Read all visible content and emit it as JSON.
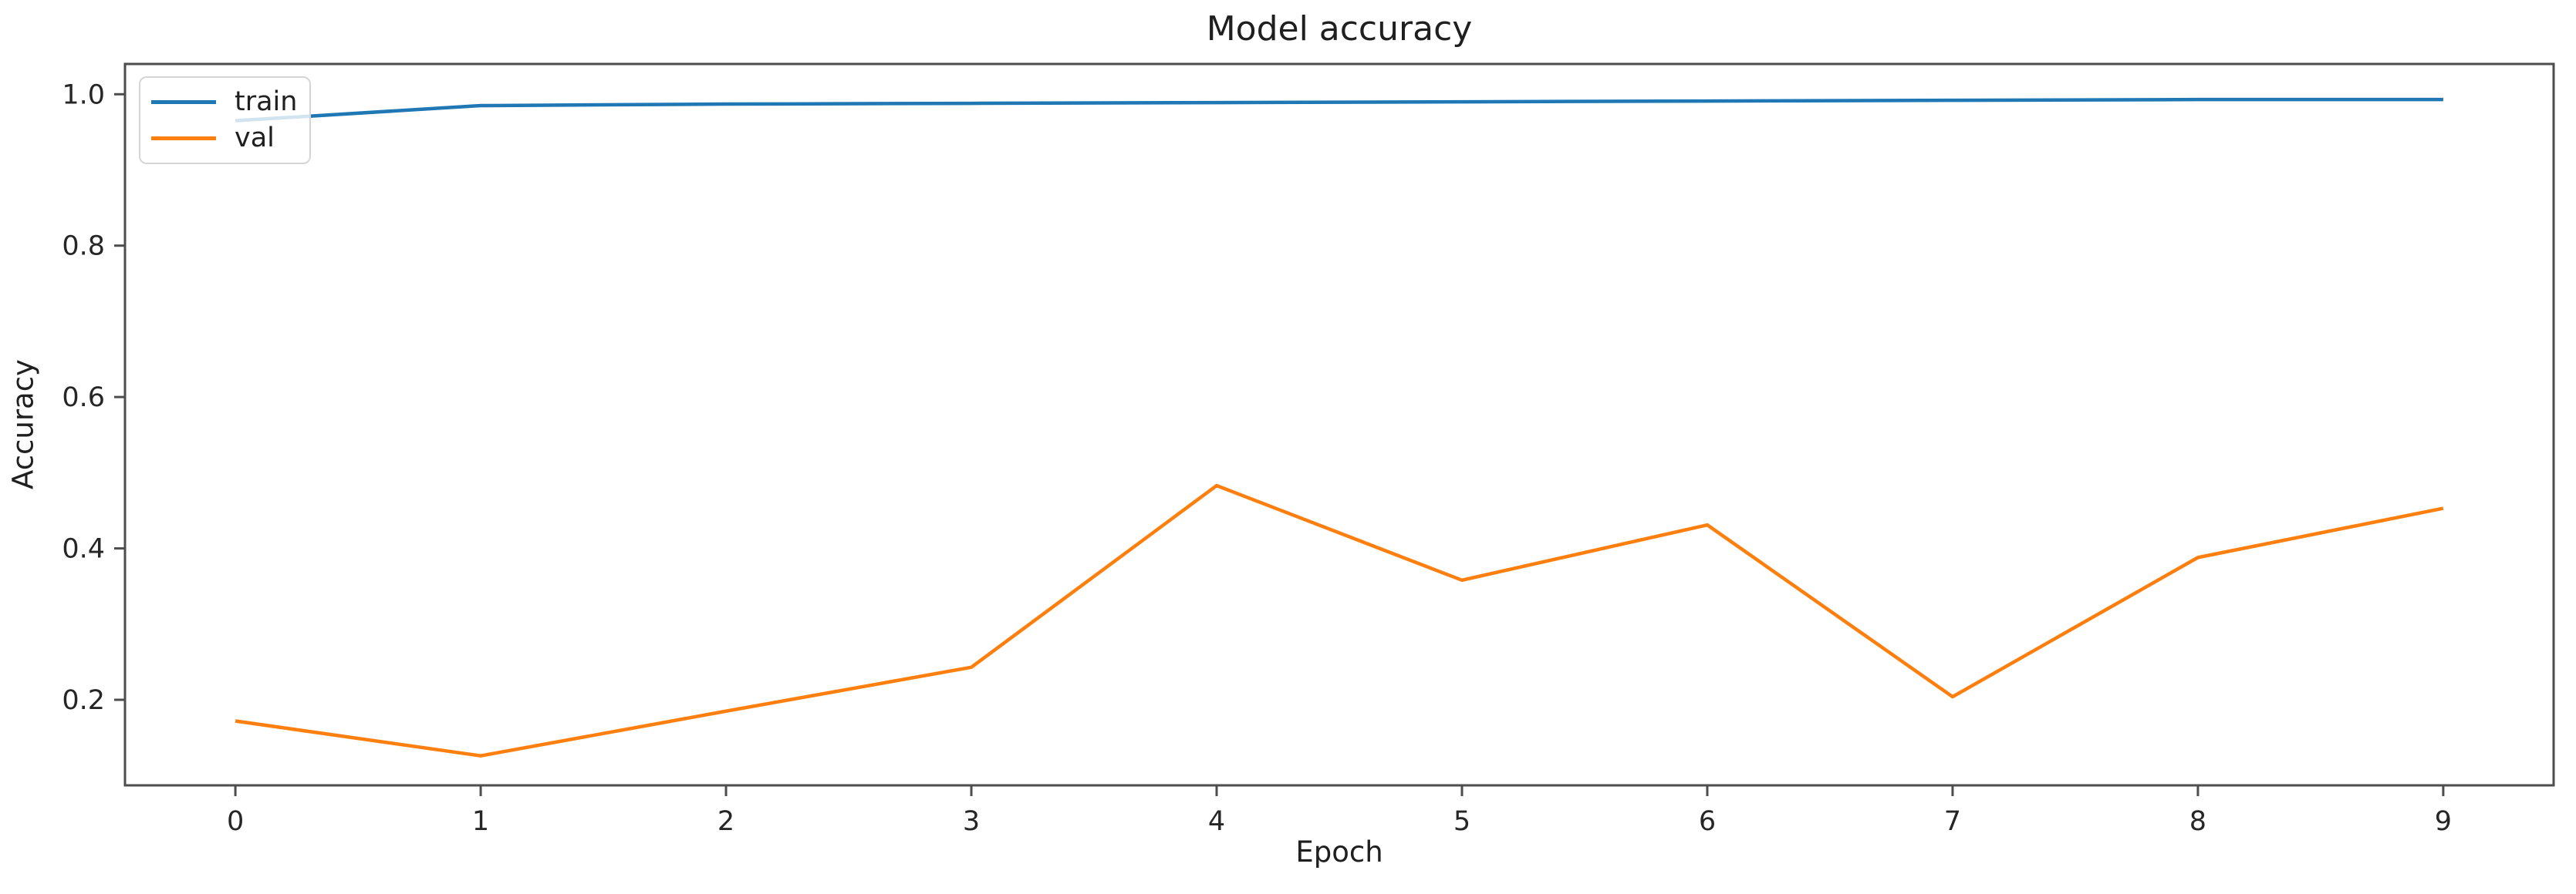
{
  "figure": {
    "background": "#ffffff",
    "text_color": "#1f1f1f",
    "axis_color": "#4d4d4d"
  },
  "chart_data": {
    "type": "line",
    "title": "Model accuracy",
    "xlabel": "Epoch",
    "ylabel": "Accuracy",
    "x": [
      0,
      1,
      2,
      3,
      4,
      5,
      6,
      7,
      8,
      9
    ],
    "series": [
      {
        "name": "train",
        "color": "#1f77b4",
        "values": [
          0.965,
          0.985,
          0.987,
          0.988,
          0.989,
          0.99,
          0.991,
          0.992,
          0.993,
          0.993
        ]
      },
      {
        "name": "val",
        "color": "#ff7f0e",
        "values": [
          0.172,
          0.126,
          0.185,
          0.243,
          0.483,
          0.358,
          0.431,
          0.204,
          0.388,
          0.453
        ]
      }
    ],
    "xticks": [
      "0",
      "1",
      "2",
      "3",
      "4",
      "5",
      "6",
      "7",
      "8",
      "9"
    ],
    "xtick_values": [
      0,
      1,
      2,
      3,
      4,
      5,
      6,
      7,
      8,
      9
    ],
    "yticks": [
      "0.2",
      "0.4",
      "0.6",
      "0.8",
      "1.0"
    ],
    "ytick_values": [
      0.2,
      0.4,
      0.6,
      0.8,
      1.0
    ],
    "xlim": [
      -0.45,
      9.45
    ],
    "ylim": [
      0.087,
      1.04
    ],
    "grid": false,
    "legend": {
      "entries": [
        "train",
        "val"
      ],
      "position": "upper-left"
    }
  }
}
